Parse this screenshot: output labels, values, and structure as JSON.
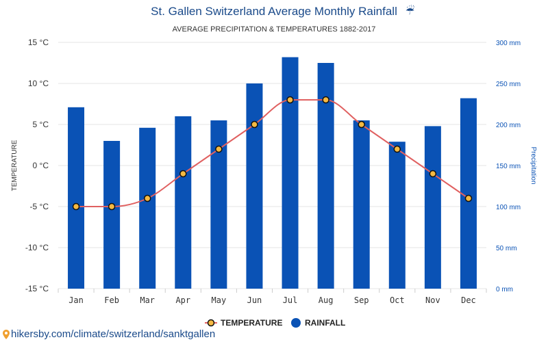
{
  "chart_data": {
    "type": "bar",
    "title": "St. Gallen Switzerland Average Monthly Rainfall",
    "title_icon": "umbrella-rain-icon",
    "subtitle": "AVERAGE PRECIPITATION & TEMPERATURES 1882-2017",
    "categories": [
      "Jan",
      "Feb",
      "Mar",
      "Apr",
      "May",
      "Jun",
      "Jul",
      "Aug",
      "Sep",
      "Oct",
      "Nov",
      "Dec"
    ],
    "series": [
      {
        "name": "TEMPERATURE",
        "type": "line",
        "axis": "left",
        "unit": "°C",
        "values": [
          -5,
          -5,
          -4,
          -1,
          2,
          5,
          8,
          8,
          5,
          2,
          -1,
          -4
        ],
        "color": "#e06060",
        "marker_fill": "#f5b942"
      },
      {
        "name": "RAINFALL",
        "type": "bar",
        "axis": "right",
        "unit": "mm",
        "values": [
          221,
          180,
          196,
          210,
          205,
          250,
          282,
          275,
          205,
          179,
          198,
          232
        ],
        "color": "#0a52b5"
      }
    ],
    "left_axis": {
      "label": "TEMPERATURE",
      "ylim": [
        -15,
        15
      ],
      "ticks": [
        "15 °C",
        "10 °C",
        "5 °C",
        "0 °C",
        "-5 °C",
        "-10 °C",
        "-15 °C"
      ]
    },
    "right_axis": {
      "label": "Precipitation",
      "ylim": [
        0,
        300
      ],
      "ticks": [
        "300 mm",
        "250 mm",
        "200 mm",
        "150 mm",
        "100 mm",
        "50 mm",
        "0 mm"
      ]
    },
    "grid": true,
    "legend_position": "bottom-center"
  },
  "source": {
    "text": "hikersby.com/climate/switzerland/sanktgallen",
    "icon": "location-pin-icon"
  },
  "colors": {
    "title": "#1a4a8a",
    "bar": "#0a52b5",
    "line": "#e06060",
    "marker": "#f5b942",
    "grid": "#e6e6e6"
  }
}
